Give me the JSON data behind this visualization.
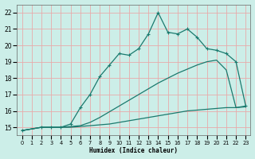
{
  "xlabel": "Humidex (Indice chaleur)",
  "background_color": "#cceee8",
  "grid_color": "#e8aaaa",
  "line_color": "#1a7a6e",
  "xlim": [
    -0.5,
    23.5
  ],
  "ylim": [
    14.5,
    22.5
  ],
  "xticks": [
    0,
    1,
    2,
    3,
    4,
    5,
    6,
    7,
    8,
    9,
    10,
    11,
    12,
    13,
    14,
    15,
    16,
    17,
    18,
    19,
    20,
    21,
    22,
    23
  ],
  "yticks": [
    15,
    16,
    17,
    18,
    19,
    20,
    21,
    22
  ],
  "line1_x": [
    0,
    2,
    3,
    4,
    5,
    6,
    7,
    8,
    9,
    10,
    11,
    12,
    13,
    14,
    15,
    16,
    17,
    18,
    19,
    20,
    21,
    22,
    23
  ],
  "line1_y": [
    14.8,
    15.0,
    15.0,
    15.0,
    15.0,
    15.05,
    15.1,
    15.15,
    15.2,
    15.3,
    15.4,
    15.5,
    15.6,
    15.7,
    15.8,
    15.9,
    16.0,
    16.05,
    16.1,
    16.15,
    16.2,
    16.2,
    16.25
  ],
  "line2_x": [
    0,
    2,
    3,
    4,
    5,
    6,
    7,
    8,
    9,
    10,
    11,
    12,
    13,
    14,
    15,
    16,
    17,
    18,
    19,
    20,
    21,
    22,
    23
  ],
  "line2_y": [
    14.8,
    15.0,
    15.0,
    15.0,
    15.05,
    15.1,
    15.3,
    15.6,
    15.95,
    16.3,
    16.65,
    17.0,
    17.35,
    17.7,
    18.0,
    18.3,
    18.55,
    18.8,
    19.0,
    19.1,
    18.5,
    16.2,
    16.3
  ],
  "line3_x": [
    0,
    2,
    3,
    4,
    5,
    6,
    7,
    8,
    9,
    10,
    11,
    12,
    13,
    14,
    15,
    16,
    17,
    18,
    19,
    20,
    21,
    22,
    23
  ],
  "line3_y": [
    14.8,
    15.0,
    15.0,
    15.0,
    15.2,
    16.2,
    17.0,
    18.1,
    18.8,
    19.5,
    19.4,
    19.8,
    20.7,
    22.0,
    20.8,
    20.7,
    21.0,
    20.5,
    19.8,
    19.7,
    19.5,
    19.0,
    16.3
  ],
  "marker_size": 3.5,
  "line_width": 0.9
}
